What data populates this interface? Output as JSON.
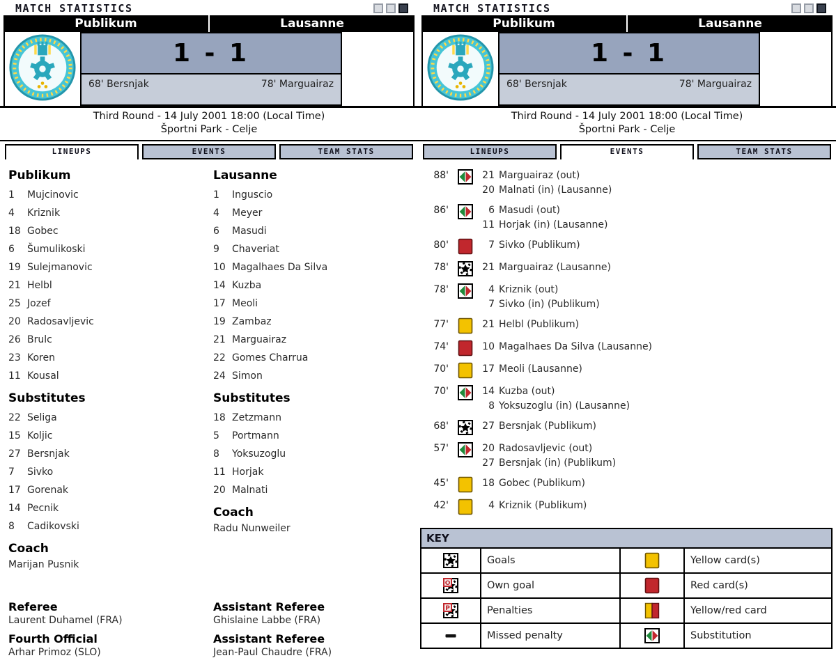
{
  "title": "MATCH STATISTICS",
  "window_buttons": [
    {
      "style": "light"
    },
    {
      "style": "light"
    },
    {
      "style": "dark"
    }
  ],
  "match": {
    "home_team": "Publikum",
    "away_team": "Lausanne",
    "score": "1 - 1",
    "home_scorers": "68' Bersnjak",
    "away_scorers": "78' Marguairaz",
    "round_line": "Third Round - 14 July 2001 18:00 (Local Time)",
    "venue_line": "Športni Park - Celje"
  },
  "tabs": [
    "LINEUPS",
    "EVENTS",
    "TEAM STATS"
  ],
  "panels": {
    "left_active_tab": "LINEUPS",
    "right_active_tab": "EVENTS"
  },
  "lineups": {
    "home": {
      "name": "Publikum",
      "players": [
        {
          "num": "1",
          "name": "Mujcinovic"
        },
        {
          "num": "4",
          "name": "Kriznik"
        },
        {
          "num": "18",
          "name": "Gobec"
        },
        {
          "num": "6",
          "name": "Šumulikoski"
        },
        {
          "num": "19",
          "name": "Sulejmanovic"
        },
        {
          "num": "21",
          "name": "Helbl"
        },
        {
          "num": "25",
          "name": "Jozef"
        },
        {
          "num": "20",
          "name": "Radosavljevic"
        },
        {
          "num": "26",
          "name": "Brulc"
        },
        {
          "num": "23",
          "name": "Koren"
        },
        {
          "num": "11",
          "name": "Kousal"
        }
      ],
      "subs_label": "Substitutes",
      "subs": [
        {
          "num": "22",
          "name": "Seliga"
        },
        {
          "num": "15",
          "name": "Koljic"
        },
        {
          "num": "27",
          "name": "Bersnjak"
        },
        {
          "num": "7",
          "name": "Sivko"
        },
        {
          "num": "17",
          "name": "Gorenak"
        },
        {
          "num": "14",
          "name": "Pecnik"
        },
        {
          "num": "8",
          "name": "Cadikovski"
        }
      ],
      "coach_label": "Coach",
      "coach": "Marijan Pusnik"
    },
    "away": {
      "name": "Lausanne",
      "players": [
        {
          "num": "1",
          "name": "Inguscio"
        },
        {
          "num": "4",
          "name": "Meyer"
        },
        {
          "num": "6",
          "name": "Masudi"
        },
        {
          "num": "9",
          "name": "Chaveriat"
        },
        {
          "num": "10",
          "name": "Magalhaes Da Silva"
        },
        {
          "num": "14",
          "name": "Kuzba"
        },
        {
          "num": "17",
          "name": "Meoli"
        },
        {
          "num": "19",
          "name": "Zambaz"
        },
        {
          "num": "21",
          "name": "Marguairaz"
        },
        {
          "num": "22",
          "name": "Gomes Charrua"
        },
        {
          "num": "24",
          "name": "Simon"
        }
      ],
      "subs_label": "Substitutes",
      "subs": [
        {
          "num": "18",
          "name": "Zetzmann"
        },
        {
          "num": "5",
          "name": "Portmann"
        },
        {
          "num": "8",
          "name": "Yoksuzoglu"
        },
        {
          "num": "11",
          "name": "Horjak"
        },
        {
          "num": "20",
          "name": "Malnati"
        }
      ],
      "coach_label": "Coach",
      "coach": "Radu Nunweiler"
    }
  },
  "officials": [
    {
      "role": "Referee",
      "name": "Laurent Duhamel (FRA)"
    },
    {
      "role": "Assistant Referee",
      "name": "Ghislaine Labbe (FRA)"
    },
    {
      "role": "Fourth Official",
      "name": "Arhar Primoz (SLO)"
    },
    {
      "role": "Assistant Referee",
      "name": "Jean-Paul Chaudre (FRA)"
    }
  ],
  "events": [
    {
      "minute": "88'",
      "icon": "substitution-icon",
      "lines": [
        {
          "num": "21",
          "text": "Marguairaz (out)"
        },
        {
          "num": "20",
          "text": "Malnati (in) (Lausanne)"
        }
      ]
    },
    {
      "minute": "86'",
      "icon": "substitution-icon",
      "lines": [
        {
          "num": "6",
          "text": "Masudi (out)"
        },
        {
          "num": "11",
          "text": "Horjak (in) (Lausanne)"
        }
      ]
    },
    {
      "minute": "80'",
      "icon": "red-card-icon",
      "lines": [
        {
          "num": "7",
          "text": "Sivko (Publikum)"
        }
      ]
    },
    {
      "minute": "78'",
      "icon": "goal-icon",
      "lines": [
        {
          "num": "21",
          "text": "Marguairaz (Lausanne)"
        }
      ]
    },
    {
      "minute": "78'",
      "icon": "substitution-icon",
      "lines": [
        {
          "num": "4",
          "text": "Kriznik (out)"
        },
        {
          "num": "7",
          "text": "Sivko (in) (Publikum)"
        }
      ]
    },
    {
      "minute": "77'",
      "icon": "yellow-card-icon",
      "lines": [
        {
          "num": "21",
          "text": "Helbl (Publikum)"
        }
      ]
    },
    {
      "minute": "74'",
      "icon": "red-card-icon",
      "lines": [
        {
          "num": "10",
          "text": "Magalhaes Da Silva (Lausanne)"
        }
      ]
    },
    {
      "minute": "70'",
      "icon": "yellow-card-icon",
      "lines": [
        {
          "num": "17",
          "text": "Meoli (Lausanne)"
        }
      ]
    },
    {
      "minute": "70'",
      "icon": "substitution-icon",
      "lines": [
        {
          "num": "14",
          "text": "Kuzba (out)"
        },
        {
          "num": "8",
          "text": "Yoksuzoglu (in) (Lausanne)"
        }
      ]
    },
    {
      "minute": "68'",
      "icon": "goal-icon",
      "lines": [
        {
          "num": "27",
          "text": "Bersnjak (Publikum)"
        }
      ]
    },
    {
      "minute": "57'",
      "icon": "substitution-icon",
      "lines": [
        {
          "num": "20",
          "text": "Radosavljevic (out)"
        },
        {
          "num": "27",
          "text": "Bersnjak (in) (Publikum)"
        }
      ]
    },
    {
      "minute": "45'",
      "icon": "yellow-card-icon",
      "lines": [
        {
          "num": "18",
          "text": "Gobec (Publikum)"
        }
      ]
    },
    {
      "minute": "42'",
      "icon": "yellow-card-icon",
      "lines": [
        {
          "num": "4",
          "text": "Kriznik (Publikum)"
        }
      ]
    }
  ],
  "key": {
    "header": "KEY",
    "rows": [
      {
        "icon1": "goal-icon",
        "label1": "Goals",
        "icon2": "yellow-card-icon",
        "label2": "Yellow card(s)"
      },
      {
        "icon1": "own-goal-icon",
        "label1": "Own goal",
        "icon2": "red-card-icon",
        "label2": "Red card(s)"
      },
      {
        "icon1": "penalty-icon",
        "label1": "Penalties",
        "icon2": "yellowred-card-icon",
        "label2": "Yellow/red card"
      },
      {
        "icon1": "missed-penalty-icon",
        "label1": "Missed penalty",
        "icon2": "substitution-icon",
        "label2": "Substitution"
      }
    ]
  },
  "colors": {
    "score_band_dark": "#97a4bd",
    "score_band_light": "#c6cdd9",
    "tab_inactive": "#b9c2d3",
    "yellow_card": "#f3c200",
    "red_card": "#c1272d",
    "sub_green": "#1f8a3b",
    "badge_cyan": "#46c5d6",
    "badge_teal": "#2aa7bc",
    "badge_yellow": "#ffd94a"
  }
}
